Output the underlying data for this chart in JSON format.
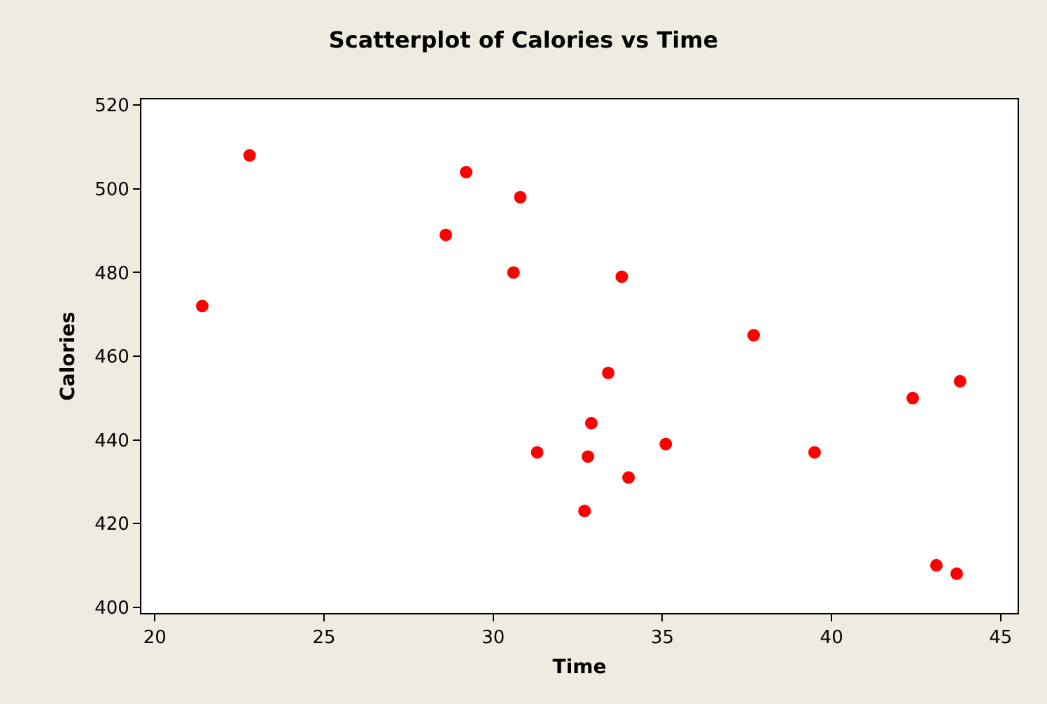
{
  "chart_data": {
    "type": "scatter",
    "title": "Scatterplot of Calories vs Time",
    "xlabel": "Time",
    "ylabel": "Calories",
    "x": [
      21.4,
      22.8,
      28.6,
      29.2,
      30.8,
      30.6,
      31.3,
      33.8,
      37.7,
      33.4,
      32.9,
      32.8,
      32.7,
      34.0,
      35.1,
      39.5,
      42.4,
      43.8,
      43.1,
      43.7
    ],
    "series": [
      {
        "color": "#ff0000",
        "values": [
          472,
          508,
          489,
          504,
          498,
          480,
          437,
          479,
          465,
          456,
          444,
          436,
          423,
          431,
          439,
          437,
          450,
          454,
          410,
          408
        ]
      }
    ],
    "xlim": [
      19.6,
      45.5
    ],
    "ylim": [
      398.6,
      521.4
    ],
    "xticks": [
      20,
      25,
      30,
      35,
      40,
      45
    ],
    "yticks": [
      400,
      420,
      440,
      460,
      480,
      500,
      520
    ],
    "grid": false,
    "marker": "circle"
  }
}
